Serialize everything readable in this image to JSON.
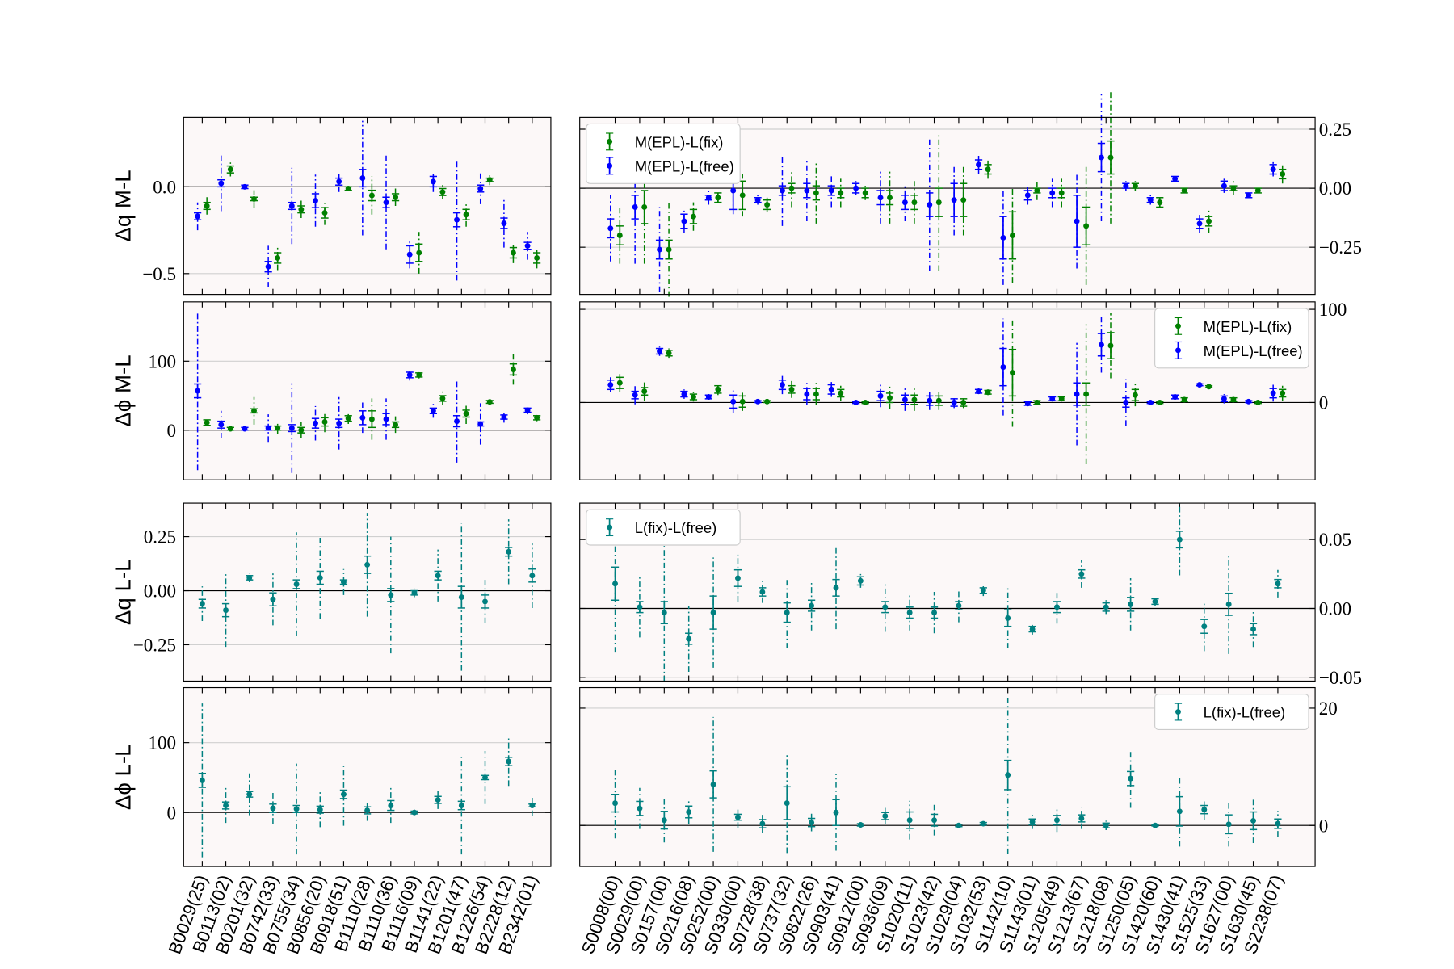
{
  "chart_data": [
    {
      "type": "errorbar",
      "ylabel": "Δq M-L",
      "ylim": [
        -0.62,
        0.4
      ],
      "yticks": [
        {
          "value": -0.5,
          "label": "−0.5"
        },
        {
          "value": 0,
          "label": "0.0"
        }
      ],
      "ytick_side": "left",
      "grid": true,
      "series": [
        {
          "color": "#0000ff",
          "values": [
            -0.17,
            0.02,
            0.0,
            -0.46,
            -0.11,
            -0.08,
            0.03,
            0.05,
            -0.09,
            -0.39,
            0.03,
            -0.19,
            -0.01,
            -0.21,
            -0.34
          ],
          "errors": [
            0.02,
            0.02,
            0.01,
            0.03,
            0.02,
            0.04,
            0.02,
            0.05,
            0.03,
            0.05,
            0.03,
            0.04,
            0.02,
            0.03,
            0.02
          ],
          "outer_errors": [
            0.08,
            0.16,
            0.01,
            0.12,
            0.22,
            0.15,
            0.06,
            0.33,
            0.27,
            0.08,
            0.06,
            0.35,
            0.09,
            0.14,
            0.08
          ]
        },
        {
          "color": "#008000",
          "values": [
            -0.11,
            0.1,
            -0.07,
            -0.41,
            -0.13,
            -0.15,
            -0.01,
            -0.05,
            -0.06,
            -0.38,
            -0.03,
            -0.16,
            0.04,
            -0.38,
            -0.41
          ],
          "errors": [
            0.02,
            0.02,
            0.01,
            0.03,
            0.02,
            0.03,
            0.01,
            0.03,
            0.02,
            0.05,
            0.02,
            0.03,
            0.01,
            0.03,
            0.03
          ],
          "outer_errors": [
            0.05,
            0.04,
            0.05,
            0.07,
            0.05,
            0.07,
            0.01,
            0.11,
            0.05,
            0.12,
            0.04,
            0.07,
            0.03,
            0.06,
            0.06
          ]
        }
      ]
    },
    {
      "type": "errorbar",
      "ylim": [
        -0.45,
        0.3
      ],
      "yticks": [
        {
          "value": -0.25,
          "label": "−0.25"
        },
        {
          "value": 0,
          "label": "0.00"
        },
        0.25
      ],
      "ytick_side": "right",
      "grid": true,
      "legend": "upper left",
      "series": [
        {
          "name": "M(EPL)-L(fix)",
          "color": "#008000",
          "values": [
            -0.2,
            -0.08,
            -0.26,
            -0.12,
            -0.04,
            -0.03,
            -0.07,
            0.0,
            -0.02,
            -0.02,
            -0.02,
            -0.04,
            -0.06,
            -0.06,
            -0.05,
            0.08,
            -0.2,
            -0.01,
            -0.02,
            -0.16,
            0.13,
            0.01,
            -0.06,
            -0.01,
            -0.14,
            0.0,
            -0.01,
            0.06
          ],
          "errors": [
            0.04,
            0.07,
            0.04,
            0.03,
            0.02,
            0.06,
            0.02,
            0.02,
            0.03,
            0.02,
            0.02,
            0.03,
            0.03,
            0.06,
            0.07,
            0.02,
            0.1,
            0.01,
            0.02,
            0.08,
            0.07,
            0.01,
            0.02,
            0.01,
            0.02,
            0.01,
            0.01,
            0.02
          ],
          "outer_errors": [
            0.12,
            0.24,
            0.2,
            0.06,
            0.02,
            0.09,
            0.03,
            0.08,
            0.13,
            0.06,
            0.03,
            0.11,
            0.09,
            0.29,
            0.15,
            0.04,
            0.2,
            0.04,
            0.06,
            0.25,
            0.28,
            0.02,
            0.02,
            0.01,
            0.05,
            0.03,
            0.01,
            0.04
          ]
        },
        {
          "name": "M(EPL)-L(free)",
          "color": "#0000ff",
          "values": [
            -0.17,
            -0.08,
            -0.26,
            -0.14,
            -0.04,
            -0.01,
            -0.05,
            -0.01,
            -0.01,
            -0.01,
            0.0,
            -0.04,
            -0.06,
            -0.07,
            -0.05,
            0.1,
            -0.21,
            -0.03,
            -0.02,
            -0.14,
            0.13,
            0.01,
            -0.05,
            0.04,
            -0.15,
            0.01,
            -0.03,
            0.08
          ],
          "errors": [
            0.04,
            0.05,
            0.04,
            0.03,
            0.01,
            0.08,
            0.01,
            0.02,
            0.03,
            0.02,
            0.02,
            0.03,
            0.03,
            0.05,
            0.07,
            0.02,
            0.09,
            0.02,
            0.02,
            0.11,
            0.06,
            0.01,
            0.01,
            0.01,
            0.02,
            0.02,
            0.01,
            0.02
          ],
          "outer_errors": [
            0.14,
            0.24,
            0.18,
            0.05,
            0.03,
            0.1,
            0.02,
            0.15,
            0.13,
            0.07,
            0.03,
            0.11,
            0.08,
            0.28,
            0.15,
            0.04,
            0.2,
            0.04,
            0.06,
            0.2,
            0.27,
            0.02,
            0.02,
            0.01,
            0.04,
            0.03,
            0.01,
            0.03
          ]
        }
      ]
    },
    {
      "type": "errorbar",
      "ylabel": "Δϕ M-L",
      "ylim": [
        -72,
        186
      ],
      "yticks": [
        0,
        100
      ],
      "ytick_side": "left",
      "grid": true,
      "series": [
        {
          "color": "#0000ff",
          "values": [
            57,
            8,
            2,
            3,
            3,
            10,
            10,
            18,
            16,
            80,
            28,
            13,
            9,
            19,
            29
          ],
          "errors": [
            10,
            5,
            2,
            3,
            5,
            7,
            6,
            10,
            8,
            4,
            4,
            8,
            3,
            3,
            3
          ],
          "outer_errors": [
            115,
            20,
            3,
            20,
            65,
            25,
            38,
            22,
            30,
            8,
            10,
            60,
            30,
            8,
            6
          ]
        },
        {
          "color": "#008000",
          "values": [
            11,
            2,
            28,
            3,
            0,
            12,
            17,
            16,
            8,
            80,
            46,
            24,
            41,
            88,
            18
          ],
          "errors": [
            4,
            2,
            3,
            3,
            4,
            6,
            4,
            12,
            4,
            3,
            4,
            5,
            2,
            8,
            3
          ],
          "outer_errors": [
            5,
            3,
            20,
            8,
            12,
            15,
            8,
            30,
            12,
            5,
            10,
            15,
            3,
            22,
            5
          ]
        }
      ]
    },
    {
      "type": "errorbar",
      "ylim": [
        -83,
        108
      ],
      "yticks": [
        0,
        100
      ],
      "ytick_side": "right",
      "grid": true,
      "legend": "upper right",
      "series": [
        {
          "name": "M(EPL)-L(fix)",
          "color": "#008000",
          "values": [
            21,
            12,
            53,
            6,
            14,
            1,
            1,
            14,
            9,
            10,
            0,
            5,
            3,
            2,
            0,
            11,
            32,
            0,
            4,
            9,
            61,
            8,
            0,
            3,
            17,
            3,
            0,
            10
          ],
          "errors": [
            6,
            4,
            3,
            3,
            4,
            6,
            1,
            4,
            6,
            4,
            1,
            5,
            5,
            5,
            4,
            2,
            25,
            2,
            2,
            12,
            14,
            6,
            1,
            2,
            1,
            2,
            1,
            4
          ],
          "outer_errors": [
            10,
            10,
            5,
            5,
            6,
            10,
            1,
            9,
            12,
            8,
            1,
            12,
            12,
            10,
            6,
            3,
            58,
            3,
            2,
            75,
            35,
            12,
            1,
            3,
            2,
            3,
            1,
            8
          ]
        },
        {
          "name": "M(EPL)-L(free)",
          "color": "#0000ff",
          "values": [
            19,
            8,
            55,
            9,
            6,
            1,
            1,
            19,
            9,
            14,
            0,
            7,
            3,
            2,
            0,
            12,
            38,
            -1,
            4,
            9,
            62,
            0,
            0,
            6,
            19,
            4,
            1,
            10
          ],
          "errors": [
            5,
            4,
            3,
            3,
            2,
            7,
            1,
            5,
            6,
            5,
            1,
            5,
            5,
            5,
            4,
            2,
            20,
            2,
            2,
            12,
            12,
            5,
            1,
            2,
            1,
            3,
            1,
            5
          ],
          "outer_errors": [
            8,
            10,
            5,
            5,
            3,
            12,
            2,
            10,
            12,
            8,
            1,
            12,
            12,
            10,
            6,
            3,
            52,
            3,
            2,
            55,
            30,
            25,
            1,
            3,
            2,
            5,
            1,
            9
          ]
        }
      ]
    },
    {
      "type": "errorbar",
      "ylabel": "Δq L-L",
      "ylim": [
        -0.418,
        0.405
      ],
      "yticks": [
        {
          "value": -0.25,
          "label": "−0.25"
        },
        {
          "value": 0,
          "label": "0.00"
        },
        0.25
      ],
      "ytick_side": "left",
      "grid": true,
      "series": [
        {
          "color": "#008080",
          "values": [
            -0.06,
            -0.09,
            0.06,
            -0.04,
            0.03,
            0.06,
            0.04,
            0.12,
            -0.02,
            -0.01,
            0.07,
            -0.03,
            -0.05,
            0.18,
            0.07
          ],
          "errors": [
            0.02,
            0.03,
            0.01,
            0.03,
            0.02,
            0.03,
            0.01,
            0.04,
            0.03,
            0.01,
            0.02,
            0.05,
            0.03,
            0.02,
            0.03
          ],
          "outer_errors": [
            0.08,
            0.17,
            0.02,
            0.12,
            0.24,
            0.19,
            0.06,
            0.24,
            0.27,
            0.02,
            0.12,
            0.34,
            0.1,
            0.15,
            0.15
          ]
        }
      ]
    },
    {
      "type": "errorbar",
      "ylim": [
        -0.0527,
        0.0764
      ],
      "yticks": [
        {
          "value": -0.05,
          "label": "−0.05"
        },
        {
          "value": 0,
          "label": "0.00"
        },
        0.05
      ],
      "ytick_side": "right",
      "grid": true,
      "legend": "upper left",
      "series": [
        {
          "name": "L(fix)-L(free)",
          "color": "#008080",
          "values": [
            0.018,
            0.001,
            -0.003,
            -0.022,
            -0.003,
            0.022,
            0.012,
            -0.003,
            0.002,
            0.015,
            0.02,
            0.001,
            -0.003,
            -0.003,
            0.002,
            0.013,
            -0.007,
            -0.015,
            0.001,
            0.025,
            0.001,
            0.003,
            0.005,
            0.05,
            -0.013,
            0.003,
            -0.015,
            0.018
          ],
          "errors": [
            0.012,
            0.004,
            0.008,
            0.004,
            0.012,
            0.006,
            0.003,
            0.007,
            0.004,
            0.006,
            0.003,
            0.004,
            0.004,
            0.004,
            0.003,
            0.002,
            0.006,
            0.002,
            0.004,
            0.003,
            0.003,
            0.005,
            0.002,
            0.006,
            0.005,
            0.008,
            0.004,
            0.003
          ],
          "outer_errors": [
            0.05,
            0.022,
            0.05,
            0.024,
            0.04,
            0.017,
            0.008,
            0.026,
            0.018,
            0.03,
            0.005,
            0.018,
            0.013,
            0.015,
            0.012,
            0.004,
            0.022,
            0.004,
            0.012,
            0.01,
            0.005,
            0.019,
            0.003,
            0.026,
            0.018,
            0.036,
            0.013,
            0.01
          ]
        }
      ]
    },
    {
      "type": "errorbar",
      "ylabel": "Δϕ L-L",
      "ylim": [
        -77.3,
        178.7
      ],
      "yticks": [
        0,
        100
      ],
      "ytick_side": "left",
      "grid": true,
      "categories": [
        "B0029(25)",
        "B0113(02)",
        "B0201(32)",
        "B0742(33)",
        "B0755(34)",
        "B0856(20)",
        "B0918(51)",
        "B1110(28)",
        "B1110(36)",
        "B1116(09)",
        "B1141(22)",
        "B1201(47)",
        "B1226(54)",
        "B2228(12)",
        "B2342(01)"
      ],
      "series": [
        {
          "color": "#008080",
          "values": [
            46,
            10,
            26,
            6,
            5,
            4,
            26,
            3,
            10,
            0,
            18,
            10,
            50,
            73,
            10
          ],
          "errors": [
            10,
            5,
            4,
            6,
            5,
            5,
            6,
            5,
            7,
            2,
            5,
            6,
            3,
            6,
            2
          ],
          "outer_errors": [
            110,
            25,
            30,
            22,
            65,
            25,
            45,
            15,
            25,
            4,
            13,
            70,
            38,
            35,
            15
          ]
        }
      ]
    },
    {
      "type": "errorbar",
      "ylim": [
        -7,
        23.5
      ],
      "yticks": [
        0,
        20
      ],
      "ytick_side": "right",
      "grid": true,
      "legend": "upper right",
      "categories": [
        "S0008(00)",
        "S0029(00)",
        "S0157(00)",
        "S0216(08)",
        "S0252(00)",
        "S0330(00)",
        "S0728(38)",
        "S0737(32)",
        "S0822(26)",
        "S0903(41)",
        "S0912(00)",
        "S0936(09)",
        "S1020(11)",
        "S1023(42)",
        "S1029(04)",
        "S1032(53)",
        "S1142(10)",
        "S1143(01)",
        "S1205(49)",
        "S1213(67)",
        "S1218(08)",
        "S1250(05)",
        "S1420(60)",
        "S1430(41)",
        "S1525(33)",
        "S1627(00)",
        "S1630(45)",
        "S2238(07)"
      ],
      "series": [
        {
          "name": "L(fix)-L(free)",
          "color": "#008080",
          "values": [
            3.8,
            2.9,
            0.9,
            2.3,
            7,
            1.4,
            0.3,
            3.8,
            0.5,
            2.2,
            0.1,
            1.6,
            0.9,
            0.9,
            0,
            0.3,
            8.6,
            0.6,
            0.9,
            1.2,
            0,
            8,
            0,
            2.4,
            2.7,
            0.2,
            0.8,
            0.3
          ],
          "errors": [
            1.5,
            1.2,
            1.5,
            1,
            2.3,
            0.5,
            0.7,
            2.8,
            0.7,
            2.2,
            0.2,
            0.6,
            1.4,
            1,
            0.2,
            0.2,
            2.5,
            0.5,
            0.8,
            0.6,
            0.4,
            1.2,
            0.1,
            2.5,
            0.7,
            1.6,
            1.5,
            0.8
          ],
          "outer_errors": [
            6,
            3.5,
            3.8,
            2,
            11.5,
            1.8,
            1.5,
            8.5,
            1.5,
            6.5,
            0.3,
            1.4,
            3.3,
            2.6,
            0.2,
            0.3,
            13.5,
            1.2,
            2,
            1.8,
            0.8,
            5,
            0.1,
            6,
            1.7,
            3.8,
            3.8,
            2.2
          ]
        }
      ]
    }
  ]
}
